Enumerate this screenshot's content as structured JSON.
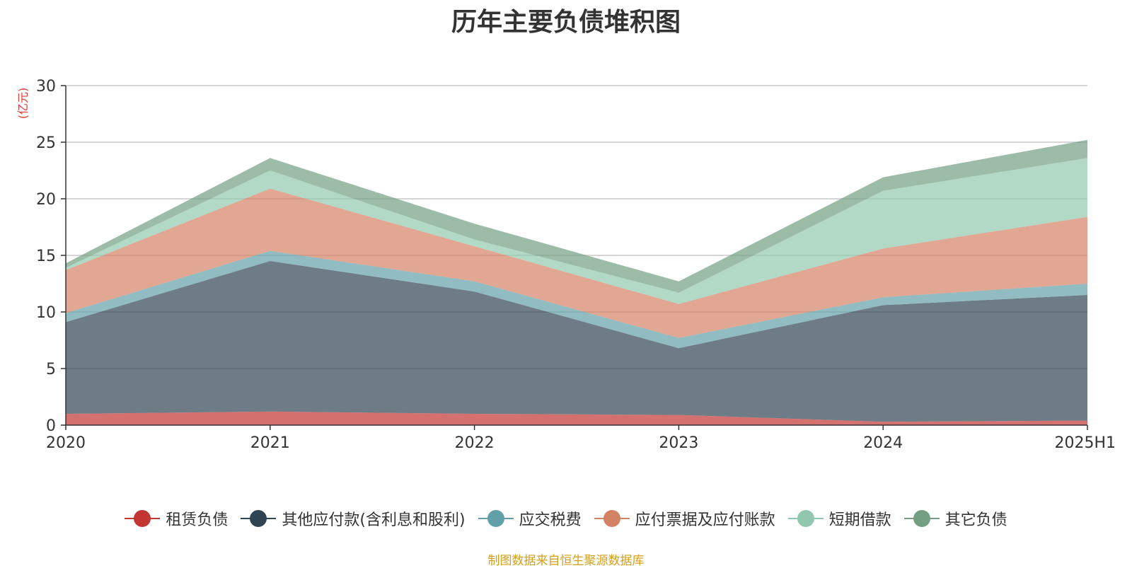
{
  "chart_data": {
    "type": "area",
    "stacked": true,
    "title": "历年主要负债堆积图",
    "ylabel": "(亿元)",
    "xlabel": "",
    "x": [
      "2020",
      "2021",
      "2022",
      "2023",
      "2024",
      "2025H1"
    ],
    "ylim": [
      0,
      30
    ],
    "yticks": [
      0,
      5,
      10,
      15,
      20,
      25,
      30
    ],
    "grid": true,
    "legend_position": "bottom",
    "series": [
      {
        "name": "租赁负债",
        "color": "#c23531",
        "values": [
          1.0,
          1.2,
          1.0,
          0.9,
          0.3,
          0.4
        ]
      },
      {
        "name": "其他应付款(含利息和股利)",
        "color": "#2f4554",
        "values": [
          8.1,
          13.3,
          10.8,
          5.9,
          10.3,
          11.1
        ]
      },
      {
        "name": "应交税费",
        "color": "#61a0a8",
        "values": [
          0.8,
          0.9,
          0.9,
          0.9,
          0.7,
          1.0
        ]
      },
      {
        "name": "应付票据及应付账款",
        "color": "#d48265",
        "values": [
          3.8,
          5.5,
          3.1,
          3.0,
          4.3,
          5.9
        ]
      },
      {
        "name": "短期借款",
        "color": "#91c7ae",
        "values": [
          0.2,
          1.6,
          0.6,
          1.0,
          5.1,
          5.2
        ]
      },
      {
        "name": "其它负债",
        "color": "#749f83",
        "values": [
          0.4,
          1.1,
          1.4,
          1.0,
          1.2,
          1.6
        ]
      }
    ]
  },
  "source_note": "制图数据来自恒生聚源数据库"
}
